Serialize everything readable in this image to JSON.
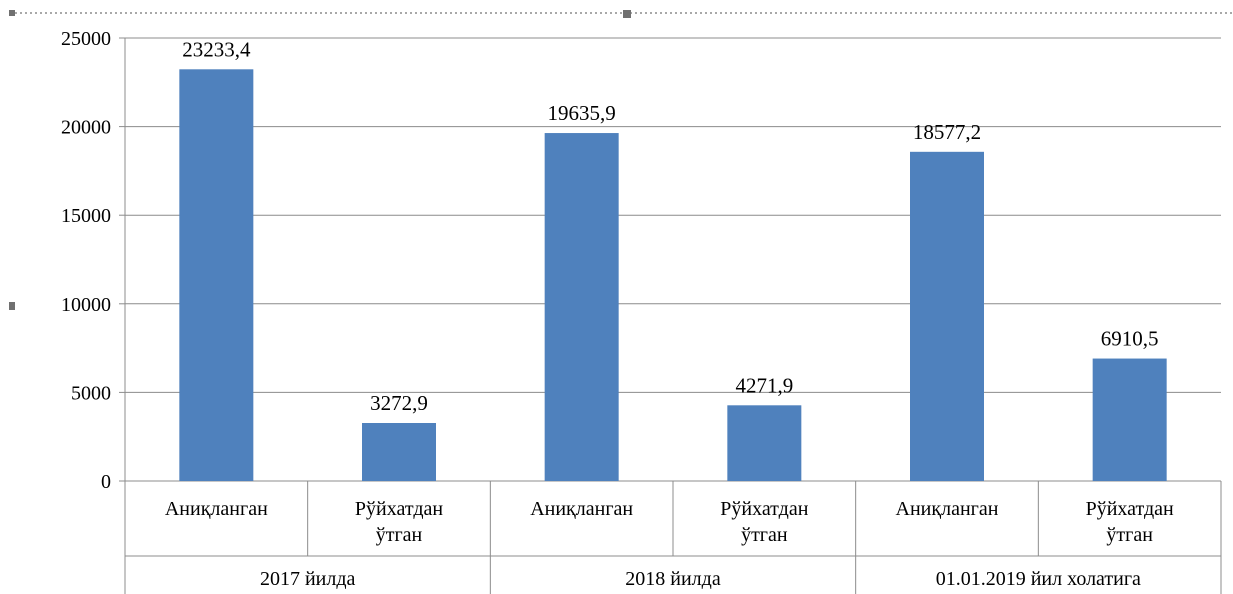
{
  "chart_data": {
    "type": "bar",
    "title": "",
    "xlabel": "",
    "ylabel": "",
    "ylim": [
      0,
      25000
    ],
    "yticks": [
      "0",
      "5000",
      "10000",
      "15000",
      "20000",
      "25000"
    ],
    "grid": true,
    "legend": "none",
    "bar_color": "#4F81BD",
    "categories": [
      {
        "label": [
          "Аниқланган"
        ],
        "group": "2017 йилда",
        "value": 23233.4,
        "value_label": "23233,4"
      },
      {
        "label": [
          "Рўйхатдан",
          "ўтган"
        ],
        "group": "2017 йилда",
        "value": 3272.9,
        "value_label": "3272,9"
      },
      {
        "label": [
          "Аниқланган"
        ],
        "group": "2018 йилда",
        "value": 19635.9,
        "value_label": "19635,9"
      },
      {
        "label": [
          "Рўйхатдан",
          "ўтган"
        ],
        "group": "2018 йилда",
        "value": 4271.9,
        "value_label": "4271,9"
      },
      {
        "label": [
          "Аниқланган"
        ],
        "group": "01.01.2019 йил холатига",
        "value": 18577.2,
        "value_label": "18577,2"
      },
      {
        "label": [
          "Рўйхатдан",
          "ўтган"
        ],
        "group": "01.01.2019 йил холатига",
        "value": 6910.5,
        "value_label": "6910,5"
      }
    ],
    "groups": [
      "2017 йилда",
      "2018 йилда",
      "01.01.2019 йил холатига"
    ]
  }
}
